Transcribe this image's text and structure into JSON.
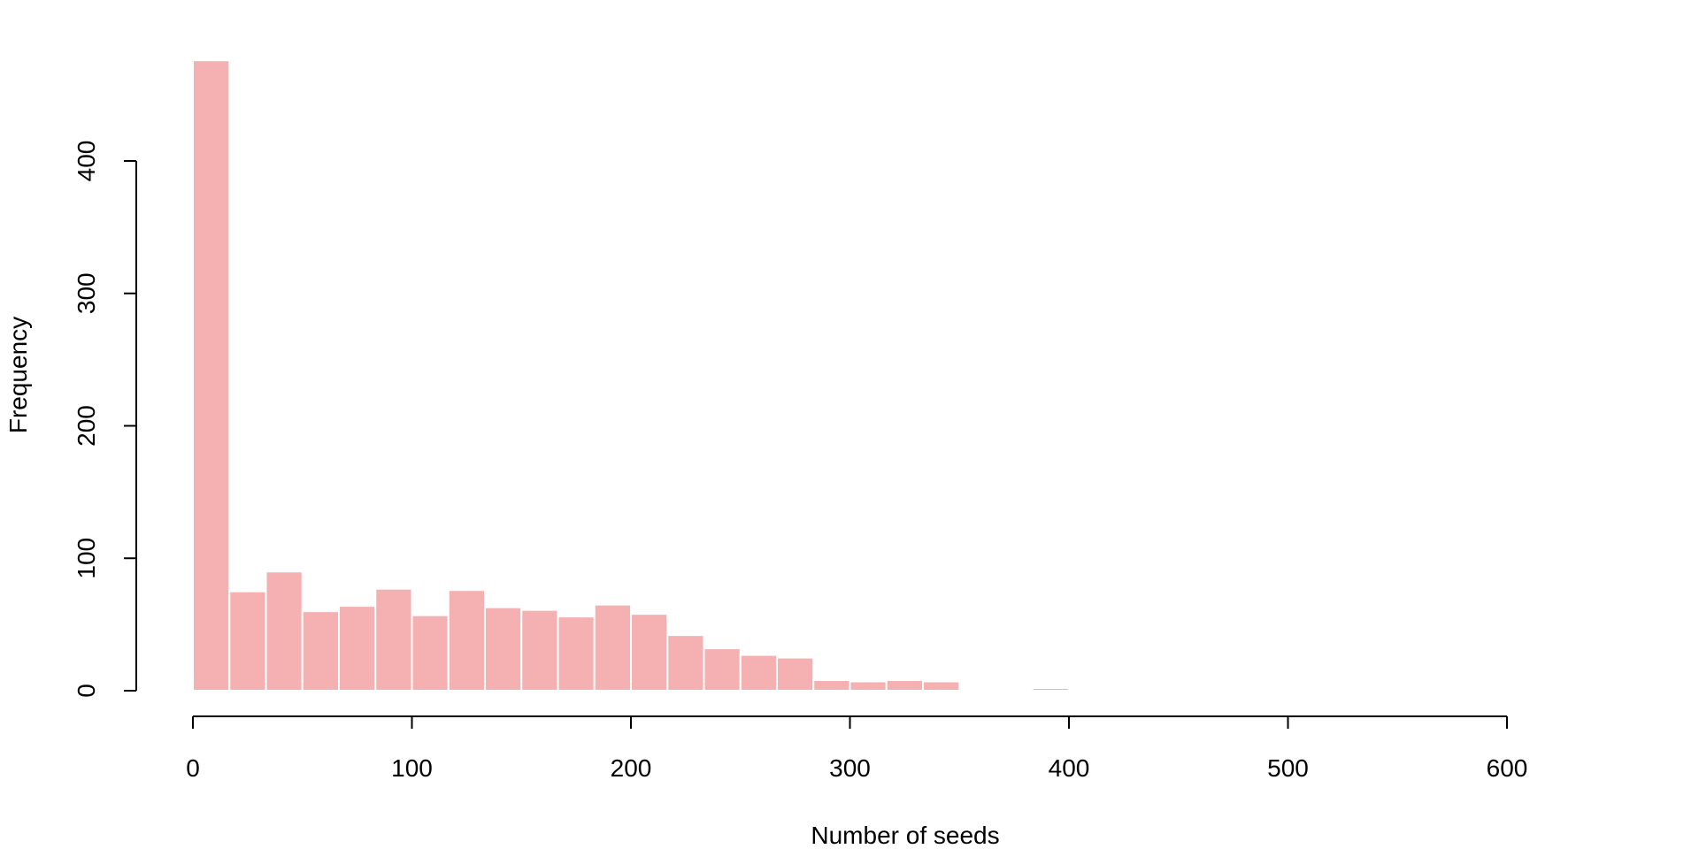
{
  "chart_data": {
    "type": "bar",
    "title": "",
    "xlabel": "Number of seeds",
    "ylabel": "Frequency",
    "bar_color": "#F5B0B1",
    "xlim": [
      0,
      600
    ],
    "ylim": [
      0,
      480
    ],
    "x_ticks": [
      0,
      100,
      200,
      300,
      400,
      500,
      600
    ],
    "y_ticks": [
      0,
      100,
      200,
      300,
      400
    ],
    "bins": [
      {
        "start": 0,
        "end": 16.67,
        "count": 476
      },
      {
        "start": 16.67,
        "end": 33.33,
        "count": 75
      },
      {
        "start": 33.33,
        "end": 50,
        "count": 90
      },
      {
        "start": 50,
        "end": 66.67,
        "count": 60
      },
      {
        "start": 66.67,
        "end": 83.33,
        "count": 64
      },
      {
        "start": 83.33,
        "end": 100,
        "count": 77
      },
      {
        "start": 100,
        "end": 116.67,
        "count": 57
      },
      {
        "start": 116.67,
        "end": 133.33,
        "count": 76
      },
      {
        "start": 133.33,
        "end": 150,
        "count": 63
      },
      {
        "start": 150,
        "end": 166.67,
        "count": 61
      },
      {
        "start": 166.67,
        "end": 183.33,
        "count": 56
      },
      {
        "start": 183.33,
        "end": 200,
        "count": 65
      },
      {
        "start": 200,
        "end": 216.67,
        "count": 58
      },
      {
        "start": 216.67,
        "end": 233.33,
        "count": 42
      },
      {
        "start": 233.33,
        "end": 250,
        "count": 32
      },
      {
        "start": 250,
        "end": 266.67,
        "count": 27
      },
      {
        "start": 266.67,
        "end": 283.33,
        "count": 25
      },
      {
        "start": 283.33,
        "end": 300,
        "count": 8
      },
      {
        "start": 300,
        "end": 316.67,
        "count": 7
      },
      {
        "start": 316.67,
        "end": 333.33,
        "count": 8
      },
      {
        "start": 333.33,
        "end": 350,
        "count": 7
      },
      {
        "start": 350,
        "end": 366.67,
        "count": 0
      },
      {
        "start": 366.67,
        "end": 383.33,
        "count": 0
      },
      {
        "start": 383.33,
        "end": 400,
        "count": 2
      },
      {
        "start": 400,
        "end": 416.67,
        "count": 1
      },
      {
        "start": 416.67,
        "end": 433.33,
        "count": 0
      },
      {
        "start": 433.33,
        "end": 450,
        "count": 0
      },
      {
        "start": 450,
        "end": 466.67,
        "count": 1
      }
    ]
  }
}
